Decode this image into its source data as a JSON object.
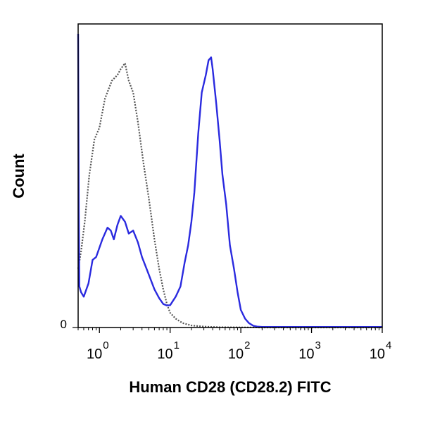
{
  "chart_data": {
    "type": "line",
    "title": "",
    "xlabel": "Human CD28 (CD28.2) FITC",
    "ylabel": "Count",
    "x_scale": "log",
    "xlim": [
      0.5,
      10000
    ],
    "ylim": [
      0,
      100
    ],
    "y_tick_labels": [
      "0"
    ],
    "x_ticks": [
      {
        "value": 1,
        "base": "10",
        "exp": "0"
      },
      {
        "value": 10,
        "base": "10",
        "exp": "1"
      },
      {
        "value": 100,
        "base": "10",
        "exp": "2"
      },
      {
        "value": 1000,
        "base": "10",
        "exp": "3"
      },
      {
        "value": 10000,
        "base": "10",
        "exp": "4"
      }
    ],
    "grid": false,
    "legend": "none",
    "series": [
      {
        "style": "dotted",
        "color": "#555555",
        "points": [
          [
            0.5,
            20
          ],
          [
            0.55,
            26
          ],
          [
            0.62,
            36
          ],
          [
            0.72,
            52
          ],
          [
            0.85,
            64
          ],
          [
            1.0,
            68
          ],
          [
            1.2,
            78
          ],
          [
            1.5,
            84
          ],
          [
            1.8,
            86
          ],
          [
            2.0,
            88
          ],
          [
            2.3,
            90
          ],
          [
            2.6,
            84
          ],
          [
            3.0,
            80
          ],
          [
            3.5,
            70
          ],
          [
            4.2,
            56
          ],
          [
            5.0,
            44
          ],
          [
            6.0,
            30
          ],
          [
            7.0,
            20
          ],
          [
            8.0,
            13
          ],
          [
            9.0,
            8
          ],
          [
            10,
            5
          ],
          [
            12,
            3
          ],
          [
            15,
            1.5
          ],
          [
            20,
            0.7
          ],
          [
            30,
            0.3
          ],
          [
            50,
            0.1
          ],
          [
            100,
            0.05
          ],
          [
            200,
            0
          ],
          [
            10000,
            0
          ]
        ]
      },
      {
        "style": "solid",
        "color": "#2a2adf",
        "points": [
          [
            0.5,
            100
          ],
          [
            0.51,
            40
          ],
          [
            0.52,
            14
          ],
          [
            0.55,
            12
          ],
          [
            0.6,
            10.5
          ],
          [
            0.7,
            15
          ],
          [
            0.8,
            23
          ],
          [
            0.9,
            24
          ],
          [
            1.1,
            30
          ],
          [
            1.3,
            34
          ],
          [
            1.45,
            33
          ],
          [
            1.6,
            30
          ],
          [
            1.8,
            35
          ],
          [
            2.0,
            38
          ],
          [
            2.3,
            36
          ],
          [
            2.6,
            32
          ],
          [
            3.0,
            33
          ],
          [
            3.5,
            29
          ],
          [
            4.0,
            24
          ],
          [
            5.0,
            18
          ],
          [
            6.0,
            13
          ],
          [
            7.0,
            10
          ],
          [
            8.0,
            8
          ],
          [
            9.0,
            7.5
          ],
          [
            10,
            7.6
          ],
          [
            12,
            10.5
          ],
          [
            14,
            14
          ],
          [
            16,
            22
          ],
          [
            18,
            28
          ],
          [
            20,
            36
          ],
          [
            22,
            46
          ],
          [
            25,
            66
          ],
          [
            28,
            80
          ],
          [
            32,
            86
          ],
          [
            35,
            91
          ],
          [
            38,
            92
          ],
          [
            40,
            88
          ],
          [
            45,
            76
          ],
          [
            50,
            64
          ],
          [
            55,
            52
          ],
          [
            62,
            42
          ],
          [
            70,
            28
          ],
          [
            80,
            20
          ],
          [
            90,
            12
          ],
          [
            100,
            6
          ],
          [
            115,
            3
          ],
          [
            130,
            1.5
          ],
          [
            150,
            0.6
          ],
          [
            170,
            0.3
          ],
          [
            200,
            0.2
          ],
          [
            10000,
            0.2
          ]
        ]
      }
    ]
  }
}
